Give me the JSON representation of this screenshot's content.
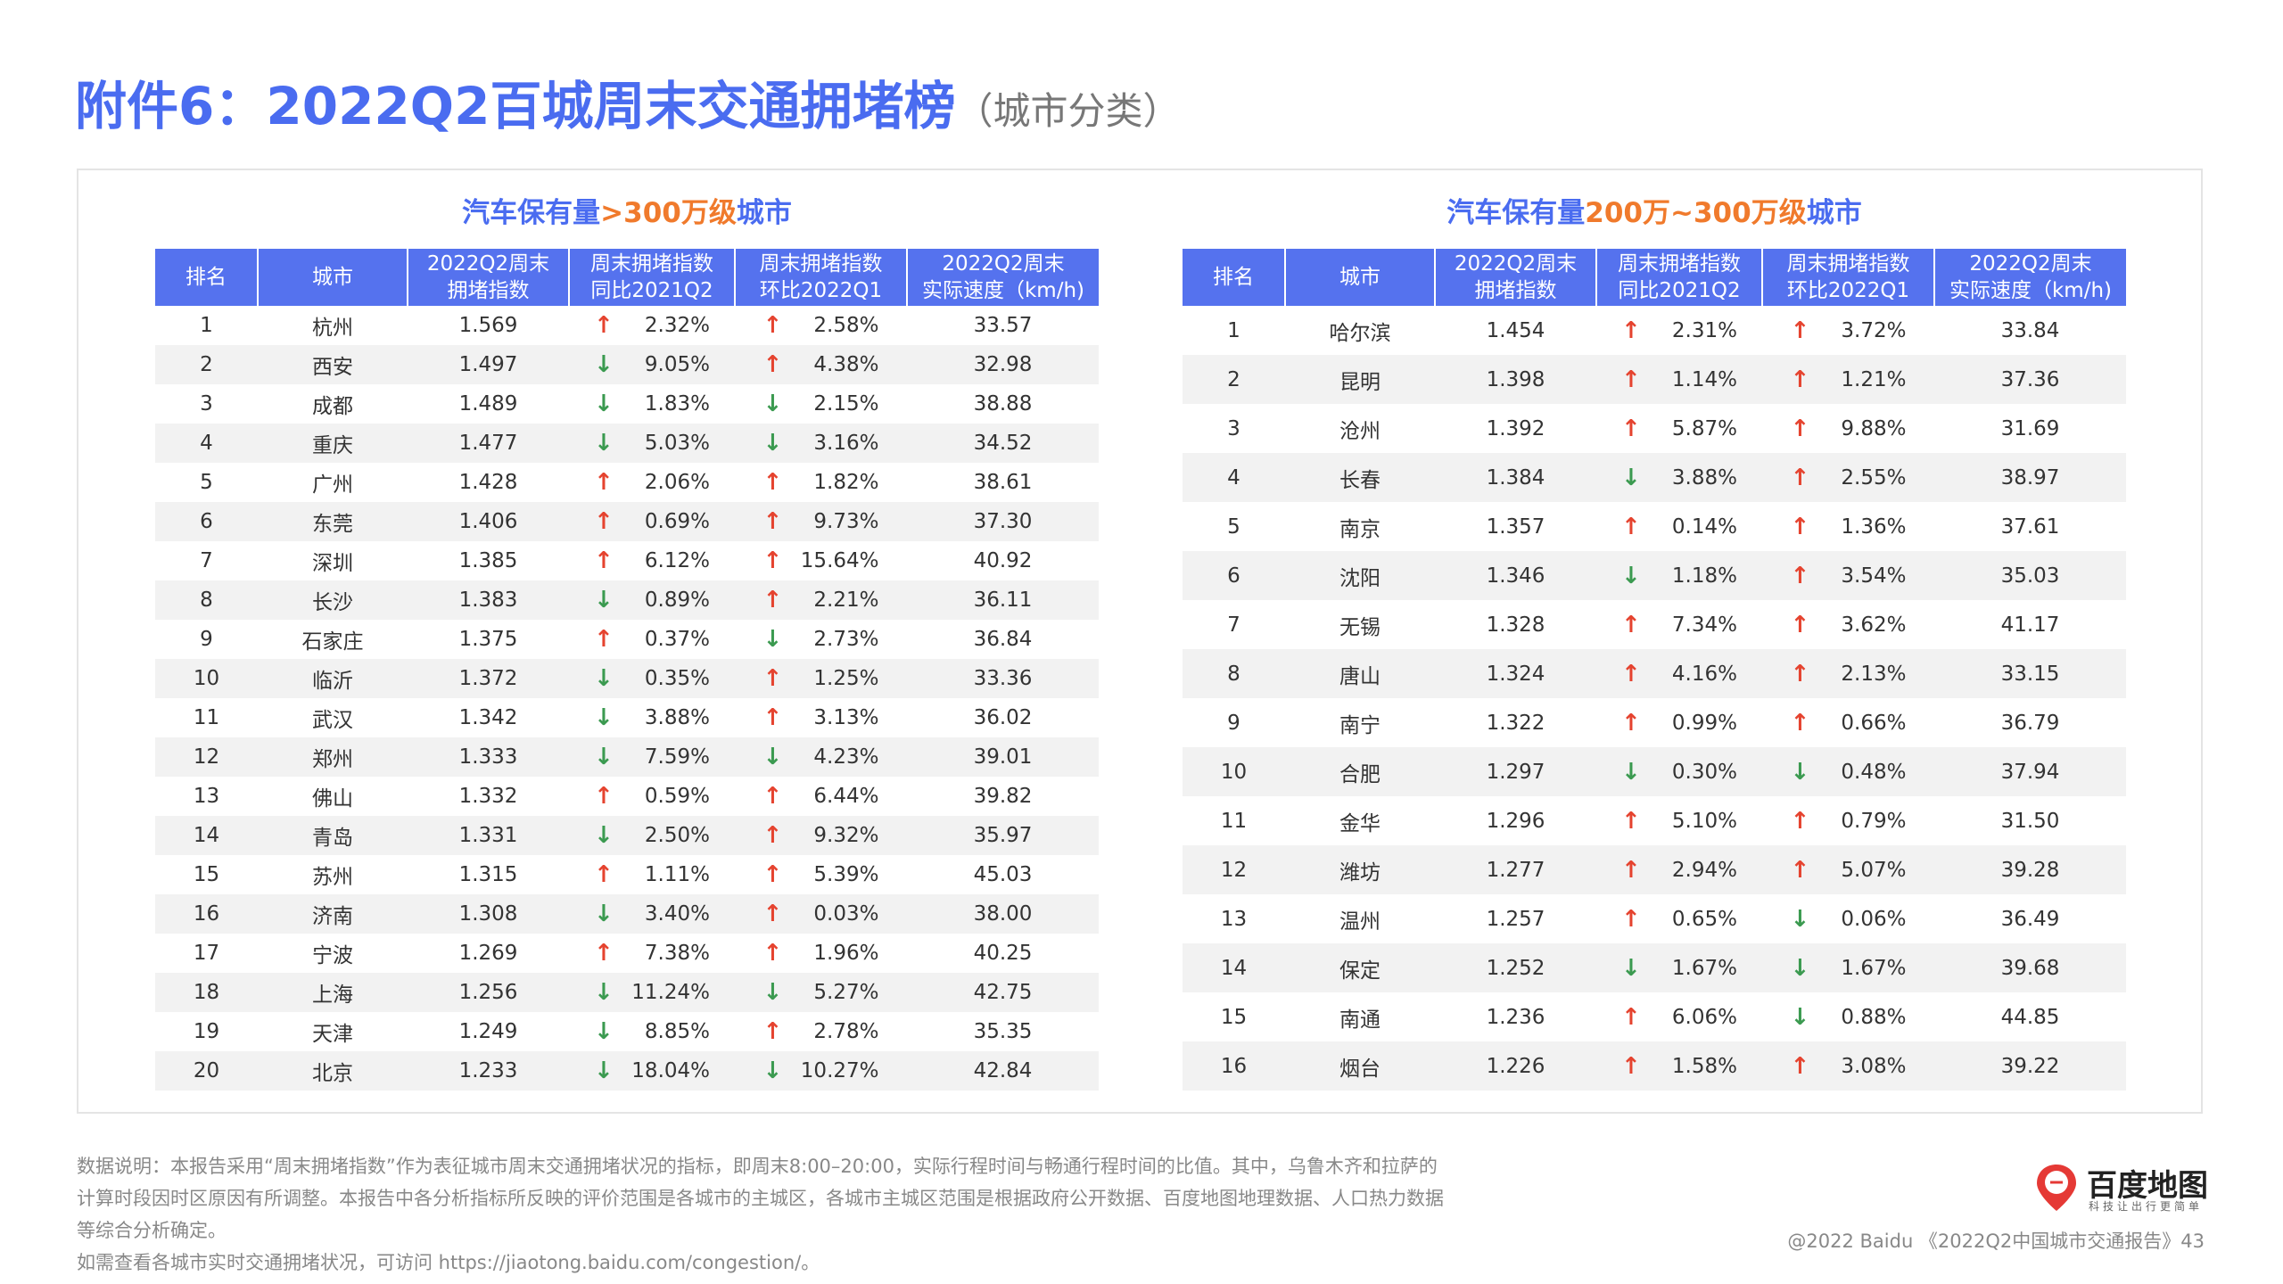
{
  "header": {
    "title": "附件6：2022Q2百城周末交通拥堵榜",
    "subtitle": "（城市分类）"
  },
  "tables": [
    {
      "heading": [
        "汽车保有量",
        ">300万级",
        "城市"
      ],
      "columns": [
        "排名",
        "城市",
        "2022Q2周末\n拥堵指数",
        "周末拥堵指数\n同比2021Q2",
        "周末拥堵指数\n环比2022Q1",
        "2022Q2周末\n实际速度（km/h)"
      ],
      "rows": [
        [
          "1",
          "杭州",
          "1.569",
          "↑",
          "2.32%",
          "↑",
          "2.58%",
          "33.57"
        ],
        [
          "2",
          "西安",
          "1.497",
          "↓",
          "9.05%",
          "↑",
          "4.38%",
          "32.98"
        ],
        [
          "3",
          "成都",
          "1.489",
          "↓",
          "1.83%",
          "↓",
          "2.15%",
          "38.88"
        ],
        [
          "4",
          "重庆",
          "1.477",
          "↓",
          "5.03%",
          "↓",
          "3.16%",
          "34.52"
        ],
        [
          "5",
          "广州",
          "1.428",
          "↑",
          "2.06%",
          "↑",
          "1.82%",
          "38.61"
        ],
        [
          "6",
          "东莞",
          "1.406",
          "↑",
          "0.69%",
          "↑",
          "9.73%",
          "37.30"
        ],
        [
          "7",
          "深圳",
          "1.385",
          "↑",
          "6.12%",
          "↑",
          "15.64%",
          "40.92"
        ],
        [
          "8",
          "长沙",
          "1.383",
          "↓",
          "0.89%",
          "↑",
          "2.21%",
          "36.11"
        ],
        [
          "9",
          "石家庄",
          "1.375",
          "↑",
          "0.37%",
          "↓",
          "2.73%",
          "36.84"
        ],
        [
          "10",
          "临沂",
          "1.372",
          "↓",
          "0.35%",
          "↑",
          "1.25%",
          "33.36"
        ],
        [
          "11",
          "武汉",
          "1.342",
          "↓",
          "3.88%",
          "↑",
          "3.13%",
          "36.02"
        ],
        [
          "12",
          "郑州",
          "1.333",
          "↓",
          "7.59%",
          "↓",
          "4.23%",
          "39.01"
        ],
        [
          "13",
          "佛山",
          "1.332",
          "↑",
          "0.59%",
          "↑",
          "6.44%",
          "39.82"
        ],
        [
          "14",
          "青岛",
          "1.331",
          "↓",
          "2.50%",
          "↑",
          "9.32%",
          "35.97"
        ],
        [
          "15",
          "苏州",
          "1.315",
          "↑",
          "1.11%",
          "↑",
          "5.39%",
          "45.03"
        ],
        [
          "16",
          "济南",
          "1.308",
          "↓",
          "3.40%",
          "↑",
          "0.03%",
          "38.00"
        ],
        [
          "17",
          "宁波",
          "1.269",
          "↑",
          "7.38%",
          "↑",
          "1.96%",
          "40.25"
        ],
        [
          "18",
          "上海",
          "1.256",
          "↓",
          "11.24%",
          "↓",
          "5.27%",
          "42.75"
        ],
        [
          "19",
          "天津",
          "1.249",
          "↓",
          "8.85%",
          "↑",
          "2.78%",
          "35.35"
        ],
        [
          "20",
          "北京",
          "1.233",
          "↓",
          "18.04%",
          "↓",
          "10.27%",
          "42.84"
        ]
      ]
    },
    {
      "heading": [
        "汽车保有量",
        "200万~300万级",
        "城市"
      ],
      "columns": [
        "排名",
        "城市",
        "2022Q2周末\n拥堵指数",
        "周末拥堵指数\n同比2021Q2",
        "周末拥堵指数\n环比2022Q1",
        "2022Q2周末\n实际速度（km/h)"
      ],
      "rows": [
        [
          "1",
          "哈尔滨",
          "1.454",
          "↑",
          "2.31%",
          "↑",
          "3.72%",
          "33.84"
        ],
        [
          "2",
          "昆明",
          "1.398",
          "↑",
          "1.14%",
          "↑",
          "1.21%",
          "37.36"
        ],
        [
          "3",
          "沧州",
          "1.392",
          "↑",
          "5.87%",
          "↑",
          "9.88%",
          "31.69"
        ],
        [
          "4",
          "长春",
          "1.384",
          "↓",
          "3.88%",
          "↑",
          "2.55%",
          "38.97"
        ],
        [
          "5",
          "南京",
          "1.357",
          "↑",
          "0.14%",
          "↑",
          "1.36%",
          "37.61"
        ],
        [
          "6",
          "沈阳",
          "1.346",
          "↓",
          "1.18%",
          "↑",
          "3.54%",
          "35.03"
        ],
        [
          "7",
          "无锡",
          "1.328",
          "↑",
          "7.34%",
          "↑",
          "3.62%",
          "41.17"
        ],
        [
          "8",
          "唐山",
          "1.324",
          "↑",
          "4.16%",
          "↑",
          "2.13%",
          "33.15"
        ],
        [
          "9",
          "南宁",
          "1.322",
          "↑",
          "0.99%",
          "↑",
          "0.66%",
          "36.79"
        ],
        [
          "10",
          "合肥",
          "1.297",
          "↓",
          "0.30%",
          "↓",
          "0.48%",
          "37.94"
        ],
        [
          "11",
          "金华",
          "1.296",
          "↑",
          "5.10%",
          "↑",
          "0.79%",
          "31.50"
        ],
        [
          "12",
          "潍坊",
          "1.277",
          "↑",
          "2.94%",
          "↑",
          "5.07%",
          "39.28"
        ],
        [
          "13",
          "温州",
          "1.257",
          "↑",
          "0.65%",
          "↓",
          "0.06%",
          "36.49"
        ],
        [
          "14",
          "保定",
          "1.252",
          "↓",
          "1.67%",
          "↓",
          "1.67%",
          "39.68"
        ],
        [
          "15",
          "南通",
          "1.236",
          "↑",
          "6.06%",
          "↓",
          "0.88%",
          "44.85"
        ],
        [
          "16",
          "烟台",
          "1.226",
          "↑",
          "1.58%",
          "↑",
          "3.08%",
          "39.22"
        ]
      ]
    }
  ],
  "notes": [
    "数据说明：本报告采用“周末拥堵指数”作为表征城市周末交通拥堵状况的指标，即周末8:00–20:00，实际行程时间与畅通行程时间的比值。其中，乌鲁木齐和拉萨的计算时段因时区原因有所调整。本报告中各分析指标所反映的评价范围是各城市的主城区，各城市主城区范围是根据政府公开数据、百度地图地理数据、人口热力数据等综合分析确定。",
    "如需查看各城市实时交通拥堵状况，可访问 https://jiaotong.baidu.com/congestion/。"
  ],
  "logo": {
    "name": "百度地图",
    "slogan": "科技让出行更简单"
  },
  "footer": "@2022 Baidu 《2022Q2中国城市交通报告》43"
}
